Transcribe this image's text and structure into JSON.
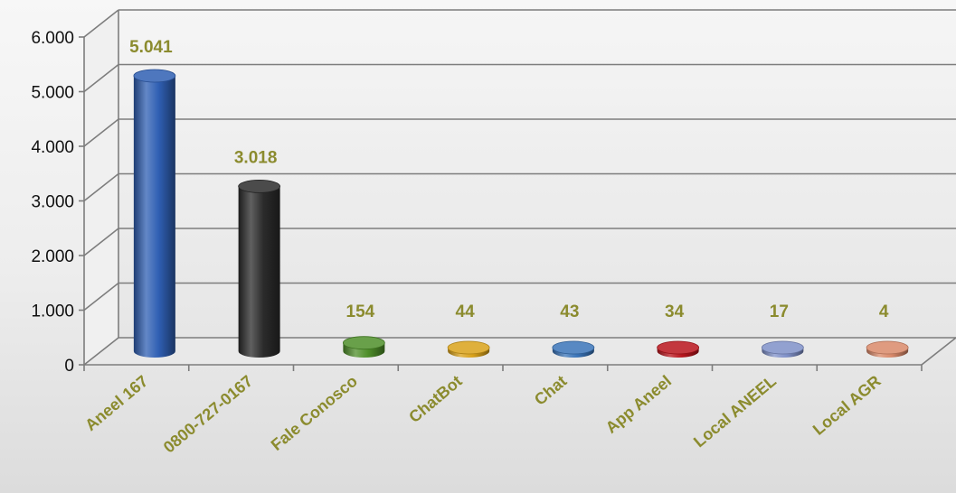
{
  "chart_data": {
    "type": "bar",
    "categories": [
      "Aneel 167",
      "0800-727-0167",
      "Fale Conosco",
      "ChatBot",
      "Chat",
      "App Aneel",
      "Local ANEEL",
      "Local AGR"
    ],
    "values": [
      5041,
      3018,
      154,
      44,
      43,
      34,
      17,
      4
    ],
    "data_labels": [
      "5.041",
      "3.018",
      "154",
      "44",
      "43",
      "34",
      "17",
      "4"
    ],
    "colors": [
      "#2f5fb3",
      "#2b2b2b",
      "#4f8f2a",
      "#d9a21a",
      "#3a74b8",
      "#b8141c",
      "#7f90c8",
      "#d9896a"
    ],
    "yticks": [
      0,
      1000,
      2000,
      3000,
      4000,
      5000,
      6000
    ],
    "ytick_labels": [
      "0",
      "1.000",
      "2.000",
      "3.000",
      "4.000",
      "5.000",
      "6.000"
    ],
    "ylim": [
      0,
      6000
    ],
    "title": "",
    "xlabel": "",
    "ylabel": "",
    "grid": true,
    "legend": "none",
    "label_color": "#8b8b2e"
  }
}
